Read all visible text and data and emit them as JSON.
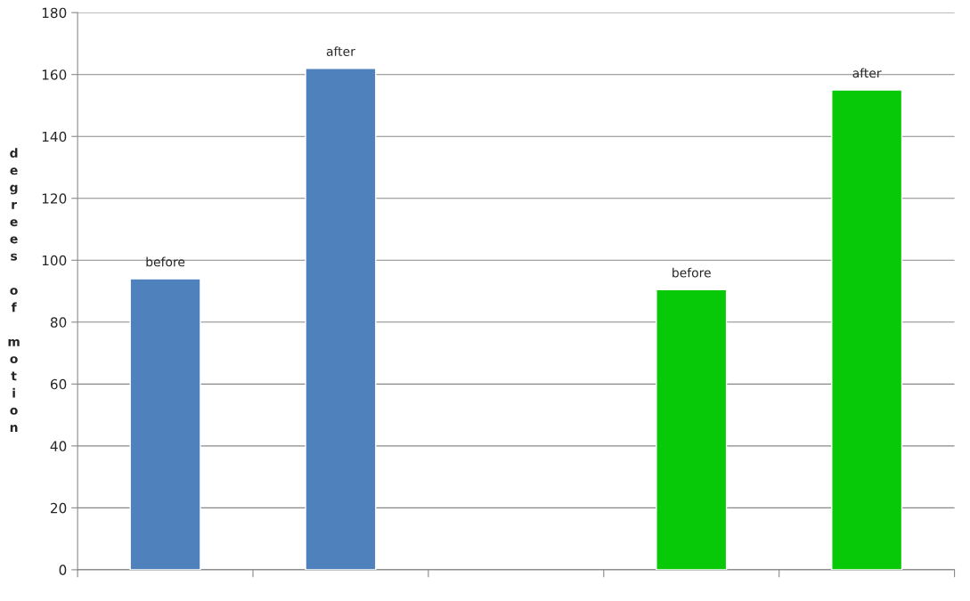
{
  "chart_data": {
    "type": "bar",
    "ylabel": "degrees of motion",
    "categories": [
      null,
      null,
      null,
      null,
      null
    ],
    "values": [
      94,
      162,
      null,
      90.5,
      155
    ],
    "colors": [
      "#4f81bd",
      "#4f81bd",
      "#4f81bd",
      "#08c908",
      "#08c908"
    ],
    "value_labels": [
      "before",
      "after",
      null,
      "before",
      "after"
    ],
    "ylim": [
      0,
      180
    ],
    "yticks": [
      0,
      20,
      40,
      60,
      80,
      100,
      120,
      140,
      160,
      180
    ],
    "grid": "y"
  }
}
